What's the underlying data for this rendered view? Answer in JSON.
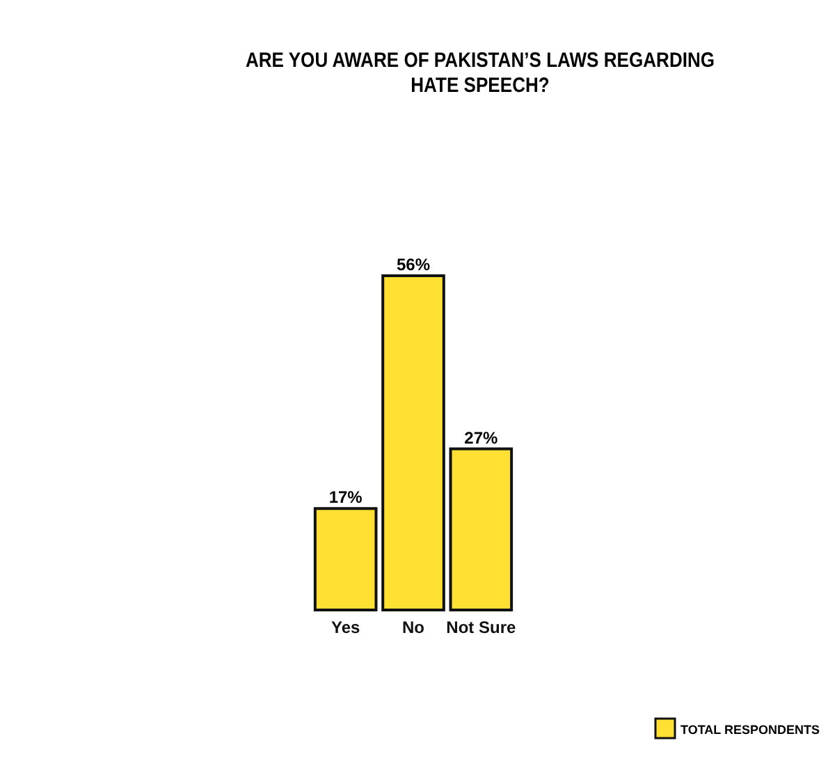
{
  "chart_data": {
    "type": "bar",
    "title": "ARE YOU AWARE OF PAKISTAN’S LAWS REGARDING\nHATE SPEECH?",
    "categories": [
      "Yes",
      "No",
      "Not Sure"
    ],
    "series": [
      {
        "name": "TOTAL RESPONDENTS",
        "color": "#ffe033",
        "values": [
          17,
          56,
          27
        ],
        "value_labels": [
          "17%",
          "56%",
          "27%"
        ]
      }
    ],
    "legend": "bottom right"
  }
}
